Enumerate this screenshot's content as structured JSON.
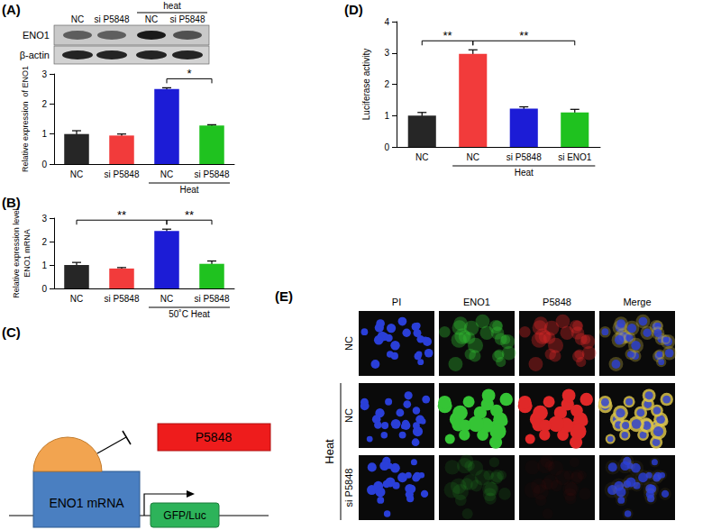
{
  "chart_data": [
    {
      "type": "bar",
      "ylabel": "Relative expression  of ENO1",
      "categories": [
        "NC",
        "si P5848",
        "NC",
        "si P5848"
      ],
      "values": [
        1.0,
        0.95,
        2.5,
        1.28
      ],
      "errors": [
        0.11,
        0.05,
        0.04,
        0.03
      ],
      "colors": [
        "#262626",
        "#f23b3b",
        "#1c1cd6",
        "#1fc21f"
      ],
      "ylim": [
        0,
        3
      ],
      "yticks": [
        0,
        1,
        2,
        3
      ],
      "grid": false,
      "groups": [
        {
          "label": "Heat",
          "from": 2,
          "to": 3
        }
      ],
      "significance": [
        {
          "from": 2,
          "to": 3,
          "label": "*"
        }
      ]
    },
    {
      "type": "bar",
      "panel": "(B)",
      "ylabel": "Relative expression level\nENO1 mRNA",
      "categories": [
        "NC",
        "si P5848",
        "NC",
        "si P5848"
      ],
      "values": [
        1.0,
        0.85,
        2.45,
        1.05
      ],
      "errors": [
        0.11,
        0.04,
        0.08,
        0.12
      ],
      "colors": [
        "#262626",
        "#f23b3b",
        "#1c1cd6",
        "#1fc21f"
      ],
      "ylim": [
        0,
        3
      ],
      "yticks": [
        0,
        1,
        2,
        3
      ],
      "grid": false,
      "groups": [
        {
          "label": "50˚C Heat",
          "from": 2,
          "to": 3
        }
      ],
      "significance": [
        {
          "from": 0,
          "to": 2,
          "label": "**"
        },
        {
          "from": 2,
          "to": 3,
          "label": "**"
        }
      ]
    },
    {
      "type": "bar",
      "panel": "(D)",
      "ylabel": "Luciferase activity",
      "categories": [
        "NC",
        "NC",
        "si P5848",
        "si ENO1"
      ],
      "values": [
        1.0,
        2.97,
        1.22,
        1.1
      ],
      "errors": [
        0.1,
        0.13,
        0.06,
        0.1
      ],
      "colors": [
        "#262626",
        "#f23b3b",
        "#1c1cd6",
        "#1fc21f"
      ],
      "ylim": [
        0,
        4
      ],
      "yticks": [
        0,
        1,
        2,
        3,
        4
      ],
      "grid": false,
      "groups": [
        {
          "label": "Heat",
          "from": 1,
          "to": 3
        }
      ],
      "significance": [
        {
          "from": 0,
          "to": 1,
          "label": "**"
        },
        {
          "from": 1,
          "to": 3,
          "label": "**"
        }
      ]
    }
  ],
  "blot": {
    "panel": "(A)",
    "group": "heat",
    "group_lanes": [
      2,
      3
    ],
    "lanes": [
      "NC",
      "si P5848",
      "NC",
      "si P5848"
    ],
    "rows": [
      "ENO1",
      "β-actin"
    ]
  },
  "diagram": {
    "panel": "(C)",
    "inhibitor": "P5848",
    "target": "ENO1 mRNA",
    "reporter": "GFP/Luc"
  },
  "microscopy": {
    "panel": "(E)",
    "columns": [
      "PI",
      "ENO1",
      "P5848",
      "Merge"
    ],
    "rows": [
      "NC",
      "NC",
      "si P5848"
    ],
    "group": {
      "label": "Heat",
      "rows": [
        1,
        2
      ]
    }
  }
}
